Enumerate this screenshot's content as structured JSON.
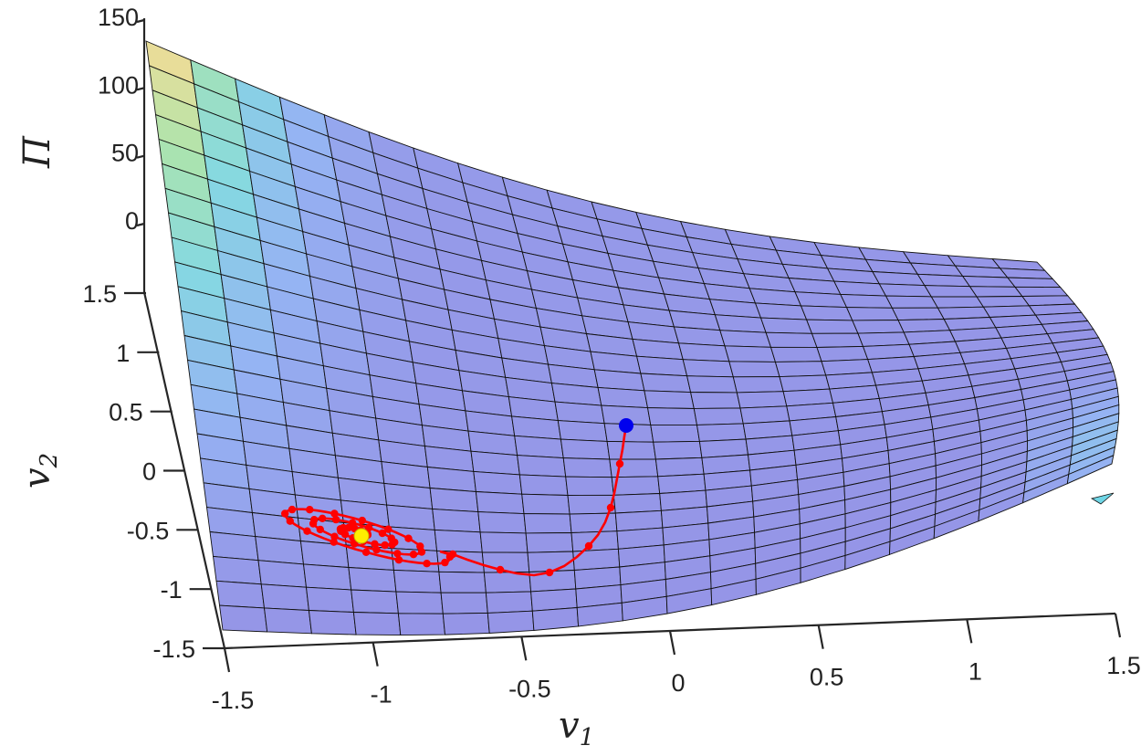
{
  "chart_data": {
    "type": "surface",
    "title": "",
    "xlabel": "v",
    "xlabel_sub": "1",
    "ylabel": "v",
    "ylabel_sub": "2",
    "zlabel": "Π",
    "xlim": [
      -1.5,
      1.5
    ],
    "ylim": [
      -1.5,
      1.5
    ],
    "zlim": [
      0,
      150
    ],
    "x_ticks": [
      "-1.5",
      "-1",
      "-0.5",
      "0",
      "0.5",
      "1",
      "1.5"
    ],
    "y_ticks": [
      "-1.5",
      "-1",
      "-0.5",
      "0",
      "0.5",
      "1",
      "1.5"
    ],
    "z_ticks": [
      "0",
      "50",
      "100",
      "150"
    ],
    "surface": {
      "colormap": "parula-like",
      "colormap_colors": [
        "#8f8fe6",
        "#8fb0f2",
        "#7fd6e0",
        "#a8e3a8",
        "#fbd98e"
      ],
      "alpha": 0.75,
      "edge_color": "#000000"
    },
    "trajectory": {
      "color": "#ff0000",
      "marker": "dot",
      "start_point": {
        "v1": 0.2,
        "v2": 0.0,
        "color": "#0000ee"
      },
      "end_point": {
        "v1": -1.0,
        "v2": -0.85,
        "color": "#ffee00"
      }
    }
  }
}
